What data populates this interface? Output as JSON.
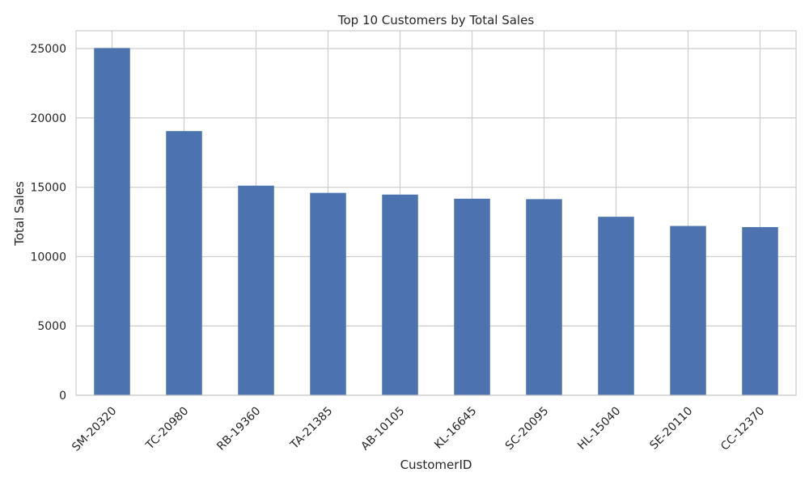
{
  "chart_data": {
    "type": "bar",
    "title": "Top 10 Customers by Total Sales",
    "xlabel": "CustomerID",
    "ylabel": "Total Sales",
    "categories": [
      "SM-20320",
      "TC-20980",
      "RB-19360",
      "TA-21385",
      "AB-10105",
      "KL-16645",
      "SC-20095",
      "HL-15040",
      "SE-20110",
      "CC-12370"
    ],
    "values": [
      25043,
      19052,
      15117,
      14595,
      14473,
      14175,
      14142,
      12873,
      12209,
      12129
    ],
    "ylim": [
      0,
      26290
    ],
    "yticks": [
      0,
      5000,
      10000,
      15000,
      20000,
      25000
    ],
    "grid": true,
    "legend": "none",
    "bar_color": "#4c72b0"
  }
}
